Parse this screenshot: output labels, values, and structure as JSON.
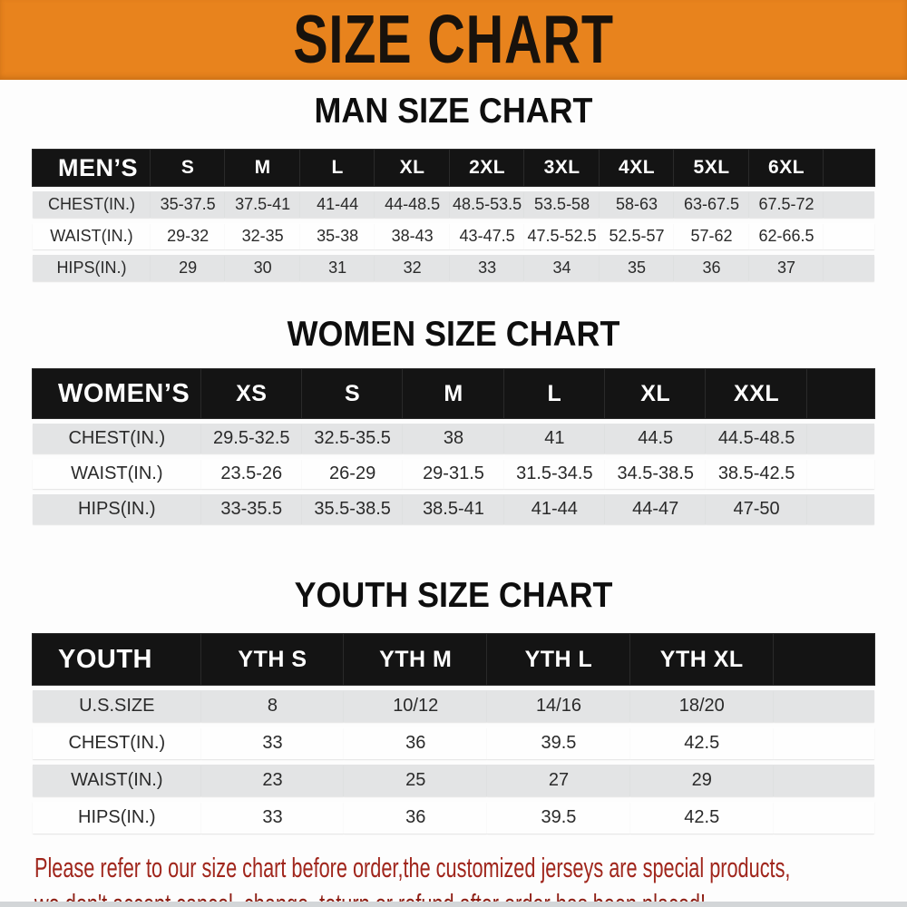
{
  "banner": {
    "title": "SIZE CHART",
    "background_color": "#E8831D"
  },
  "chart_data": [
    {
      "type": "table",
      "title": "MAN SIZE CHART",
      "header": [
        "MEN’S",
        "S",
        "M",
        "L",
        "XL",
        "2XL",
        "3XL",
        "4XL",
        "5XL",
        "6XL"
      ],
      "rows": [
        [
          "CHEST(IN.)",
          "35-37.5",
          "37.5-41",
          "41-44",
          "44-48.5",
          "48.5-53.5",
          "53.5-58",
          "58-63",
          "63-67.5",
          "67.5-72"
        ],
        [
          "WAIST(IN.)",
          "29-32",
          "32-35",
          "35-38",
          "38-43",
          "43-47.5",
          "47.5-52.5",
          "52.5-57",
          "57-62",
          "62-66.5"
        ],
        [
          "HIPS(IN.)",
          "29",
          "30",
          "31",
          "32",
          "33",
          "34",
          "35",
          "36",
          "37"
        ]
      ]
    },
    {
      "type": "table",
      "title": "WOMEN SIZE CHART",
      "header": [
        "WOMEN’S",
        "XS",
        "S",
        "M",
        "L",
        "XL",
        "XXL"
      ],
      "rows": [
        [
          "CHEST(IN.)",
          "29.5-32.5",
          "32.5-35.5",
          "38",
          "41",
          "44.5",
          "44.5-48.5"
        ],
        [
          "WAIST(IN.)",
          "23.5-26",
          "26-29",
          "29-31.5",
          "31.5-34.5",
          "34.5-38.5",
          "38.5-42.5"
        ],
        [
          "HIPS(IN.)",
          "33-35.5",
          "35.5-38.5",
          "38.5-41",
          "41-44",
          "44-47",
          "47-50"
        ]
      ]
    },
    {
      "type": "table",
      "title": "YOUTH SIZE CHART",
      "header": [
        "YOUTH",
        "YTH S",
        "YTH M",
        "YTH L",
        "YTH XL"
      ],
      "rows": [
        [
          "U.S.SIZE",
          "8",
          "10/12",
          "14/16",
          "18/20"
        ],
        [
          "CHEST(IN.)",
          "33",
          "36",
          "39.5",
          "42.5"
        ],
        [
          "WAIST(IN.)",
          "23",
          "25",
          "27",
          "29"
        ],
        [
          "HIPS(IN.)",
          "33",
          "36",
          "39.5",
          "42.5"
        ]
      ]
    }
  ],
  "table_style": {
    "header_bg": "#141414",
    "header_text": "#FFFFFF",
    "row_alt_bg": "#E3E4E5"
  },
  "disclaimer": {
    "line1": "Please refer to our size chart before order,the customized jerseys are special products,",
    "line2": "we don't accept cancel, change, teturn or refund after order has been placed!",
    "text_color": "#A0261C"
  }
}
